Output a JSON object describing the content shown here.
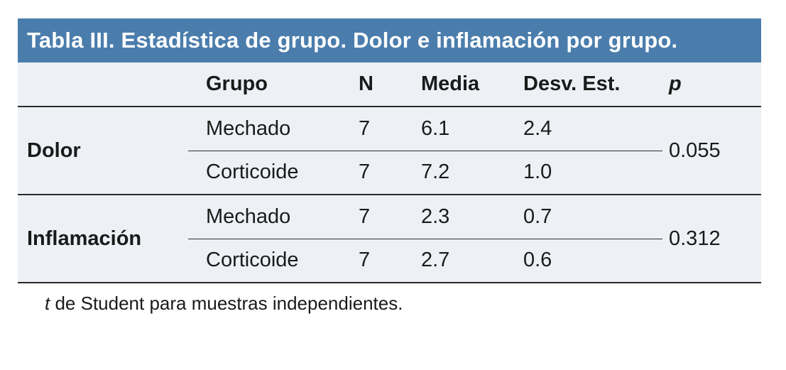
{
  "colors": {
    "title_bar_bg": "#4a7dac",
    "title_text": "#ffffff",
    "table_bg": "#edf1f6",
    "rule": "#2b2b2b",
    "text": "#1a1a1a",
    "page_bg": "#ffffff"
  },
  "table": {
    "title": "Tabla III. Estadística de grupo. Dolor e inflamación por grupo.",
    "columns": {
      "label": "",
      "grupo": "Grupo",
      "n": "N",
      "media": "Media",
      "desv": "Desv. Est.",
      "p": "p"
    },
    "sections": [
      {
        "label": "Dolor",
        "p_value": "0.055",
        "rows": [
          {
            "grupo": "Mechado",
            "n": "7",
            "media": "6.1",
            "desv": "2.4"
          },
          {
            "grupo": "Corticoide",
            "n": "7",
            "media": "7.2",
            "desv": "1.0"
          }
        ]
      },
      {
        "label": "Inflamación",
        "p_value": "0.312",
        "rows": [
          {
            "grupo": "Mechado",
            "n": "7",
            "media": "2.3",
            "desv": "0.7"
          },
          {
            "grupo": "Corticoide",
            "n": "7",
            "media": "2.7",
            "desv": "0.6"
          }
        ]
      }
    ],
    "footnote": {
      "lead_italic": "t",
      "rest": " de Student para muestras independientes."
    }
  }
}
